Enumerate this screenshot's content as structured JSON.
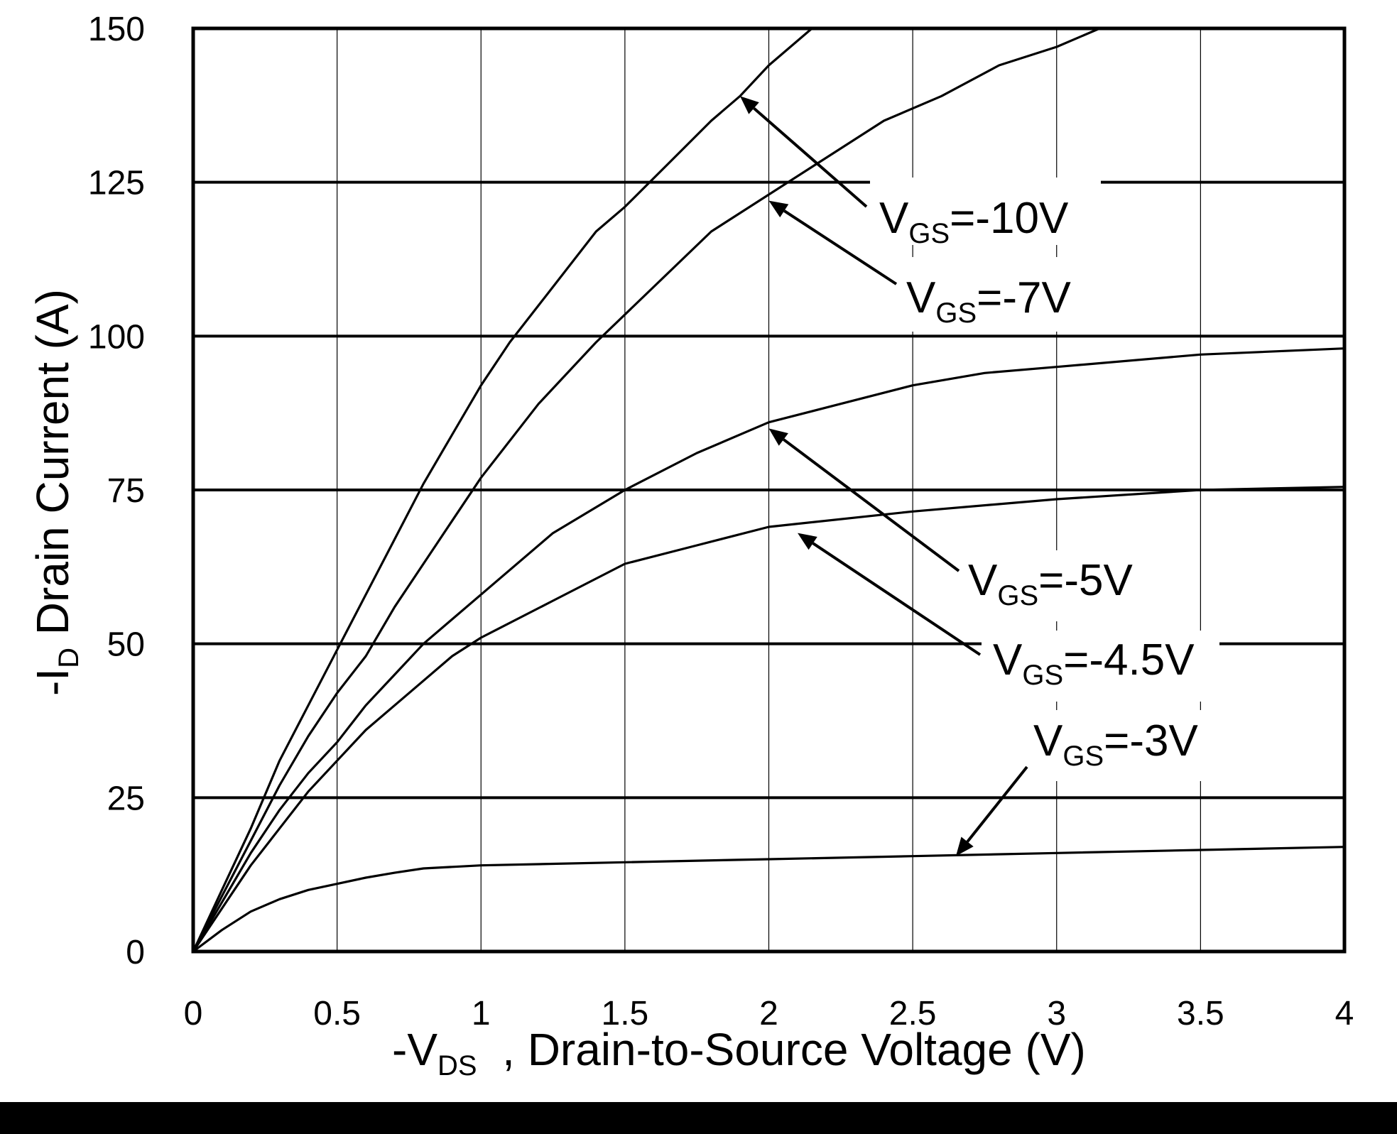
{
  "chart_data": {
    "type": "line",
    "xlabel": {
      "prefix": "-V",
      "sub": "DS",
      "suffix": "  , Drain-to-Source Voltage (V)"
    },
    "ylabel": {
      "prefix": "-I",
      "sub": "D",
      "suffix": " Drain Current (A)"
    },
    "xlim": [
      0,
      4
    ],
    "ylim": [
      0,
      150
    ],
    "x_ticks": [
      0,
      0.5,
      1,
      1.5,
      2,
      2.5,
      3,
      3.5,
      4
    ],
    "x_tick_labels": [
      "0",
      "0.5",
      "1",
      "1.5",
      "2",
      "2.5",
      "3",
      "3.5",
      "4"
    ],
    "y_ticks": [
      0,
      25,
      50,
      75,
      100,
      125,
      150
    ],
    "y_tick_labels": [
      "0",
      "25",
      "50",
      "75",
      "100",
      "125",
      "150"
    ],
    "grid": {
      "x": "thin vertical",
      "y": "thick horizontal"
    },
    "series": [
      {
        "name": "VGS=-10V",
        "points": [
          [
            0,
            0
          ],
          [
            0.1,
            10
          ],
          [
            0.2,
            20
          ],
          [
            0.3,
            31
          ],
          [
            0.4,
            40
          ],
          [
            0.5,
            49
          ],
          [
            0.6,
            58
          ],
          [
            0.7,
            67
          ],
          [
            0.8,
            76
          ],
          [
            0.9,
            84
          ],
          [
            1.0,
            92
          ],
          [
            1.1,
            99
          ],
          [
            1.25,
            108
          ],
          [
            1.4,
            117
          ],
          [
            1.5,
            121
          ],
          [
            1.65,
            128
          ],
          [
            1.8,
            135
          ],
          [
            1.9,
            139
          ],
          [
            2.0,
            144
          ],
          [
            2.15,
            150
          ]
        ]
      },
      {
        "name": "VGS=-7V",
        "points": [
          [
            0,
            0
          ],
          [
            0.1,
            9
          ],
          [
            0.2,
            18
          ],
          [
            0.3,
            27
          ],
          [
            0.4,
            35
          ],
          [
            0.5,
            42
          ],
          [
            0.6,
            48
          ],
          [
            0.7,
            56
          ],
          [
            0.8,
            63
          ],
          [
            0.9,
            70
          ],
          [
            1.0,
            77
          ],
          [
            1.2,
            89
          ],
          [
            1.4,
            99
          ],
          [
            1.6,
            108
          ],
          [
            1.8,
            117
          ],
          [
            2.0,
            123
          ],
          [
            2.2,
            129
          ],
          [
            2.4,
            135
          ],
          [
            2.6,
            139
          ],
          [
            2.8,
            144
          ],
          [
            3.0,
            147
          ],
          [
            3.15,
            150
          ]
        ]
      },
      {
        "name": "VGS=-5V",
        "points": [
          [
            0,
            0
          ],
          [
            0.1,
            8
          ],
          [
            0.2,
            16
          ],
          [
            0.3,
            23
          ],
          [
            0.4,
            29
          ],
          [
            0.5,
            34
          ],
          [
            0.6,
            40
          ],
          [
            0.7,
            45
          ],
          [
            0.8,
            50
          ],
          [
            1.0,
            58
          ],
          [
            1.25,
            68
          ],
          [
            1.5,
            75
          ],
          [
            1.75,
            81
          ],
          [
            2.0,
            86
          ],
          [
            2.25,
            89
          ],
          [
            2.5,
            92
          ],
          [
            2.75,
            94
          ],
          [
            3.0,
            95
          ],
          [
            3.5,
            97
          ],
          [
            4.0,
            98
          ]
        ]
      },
      {
        "name": "VGS=-4.5V",
        "points": [
          [
            0,
            0
          ],
          [
            0.1,
            7
          ],
          [
            0.2,
            14
          ],
          [
            0.3,
            20
          ],
          [
            0.4,
            26
          ],
          [
            0.5,
            31
          ],
          [
            0.6,
            36
          ],
          [
            0.7,
            40
          ],
          [
            0.8,
            44
          ],
          [
            0.9,
            48
          ],
          [
            1.0,
            51
          ],
          [
            1.25,
            57
          ],
          [
            1.5,
            63
          ],
          [
            1.75,
            66
          ],
          [
            2.0,
            69
          ],
          [
            2.5,
            71.5
          ],
          [
            3.0,
            73.5
          ],
          [
            3.5,
            75
          ],
          [
            4.0,
            75.5
          ]
        ]
      },
      {
        "name": "VGS=-3V",
        "points": [
          [
            0,
            0
          ],
          [
            0.1,
            3.5
          ],
          [
            0.2,
            6.5
          ],
          [
            0.3,
            8.5
          ],
          [
            0.4,
            10
          ],
          [
            0.5,
            11
          ],
          [
            0.6,
            12
          ],
          [
            0.7,
            12.8
          ],
          [
            0.8,
            13.5
          ],
          [
            1.0,
            14
          ],
          [
            1.5,
            14.5
          ],
          [
            2.0,
            15
          ],
          [
            2.5,
            15.5
          ],
          [
            3.0,
            16
          ],
          [
            3.5,
            16.5
          ],
          [
            4.0,
            17
          ]
        ]
      }
    ],
    "annotations": [
      {
        "label_prefix": "V",
        "label_sub": "GS",
        "label_suffix": "=-10V",
        "arrow_target": [
          1.9,
          139
        ]
      },
      {
        "label_prefix": "V",
        "label_sub": "GS",
        "label_suffix": "=-7V",
        "arrow_target": [
          2.0,
          122
        ]
      },
      {
        "label_prefix": "V",
        "label_sub": "GS",
        "label_suffix": "=-5V",
        "arrow_target": [
          2.0,
          85
        ]
      },
      {
        "label_prefix": "V",
        "label_sub": "GS",
        "label_suffix": "=-4.5V",
        "arrow_target": [
          2.1,
          68
        ]
      },
      {
        "label_prefix": "V",
        "label_sub": "GS",
        "label_suffix": "=-3V",
        "arrow_target": [
          2.65,
          15.5
        ]
      }
    ]
  }
}
